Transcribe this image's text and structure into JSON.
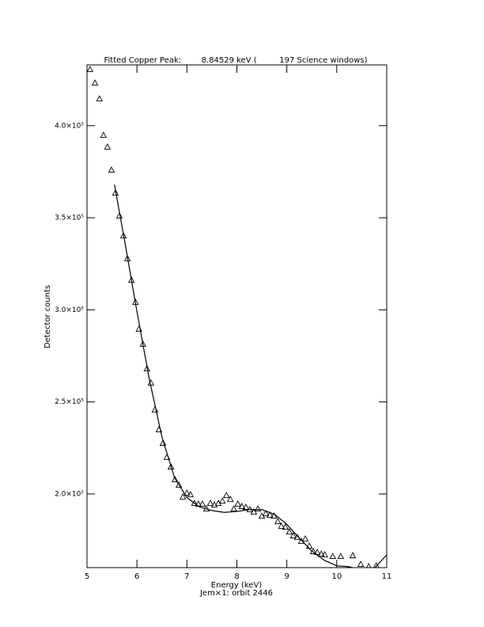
{
  "chart_data": {
    "type": "scatter",
    "title": "Fitted Copper Peak:        8.84529 keV (         197 Science windows)",
    "x_label": "Energy (keV)",
    "subtitle": "Jem×1: orbit 2446",
    "y_label": "Detector counts",
    "xlim": [
      5,
      11
    ],
    "xticks": [
      5,
      6,
      7,
      8,
      9,
      10,
      11
    ],
    "ylim": [
      160000,
      433000
    ],
    "yticks": [
      {
        "value": 200000,
        "label": "2.0×10⁵"
      },
      {
        "value": 250000,
        "label": "2.5×10⁵"
      },
      {
        "value": 300000,
        "label": "3.0×10⁵"
      },
      {
        "value": 350000,
        "label": "3.5×10⁵"
      },
      {
        "value": 400000,
        "label": "4.0×10⁵"
      }
    ],
    "series": [
      {
        "style": "triangles",
        "color": "#000000",
        "x": [
          5.06,
          5.16,
          5.25,
          5.33,
          5.41,
          5.49,
          5.57,
          5.65,
          5.73,
          5.81,
          5.89,
          5.97,
          6.04,
          6.12,
          6.2,
          6.28,
          6.36,
          6.44,
          6.52,
          6.6,
          6.68,
          6.76,
          6.84,
          6.92,
          7.0,
          7.07,
          7.15,
          7.23,
          7.31,
          7.39,
          7.47,
          7.55,
          7.63,
          7.71,
          7.79,
          7.87,
          7.94,
          8.02,
          8.1,
          8.18,
          8.26,
          8.34,
          8.42,
          8.5,
          8.58,
          8.66,
          8.74,
          8.82,
          8.89,
          8.97,
          9.05,
          9.13,
          9.21,
          9.29,
          9.37,
          9.45,
          9.53,
          9.61,
          9.69,
          9.76,
          9.92,
          10.08,
          10.32,
          10.48,
          10.64,
          10.79
        ],
        "values": [
          430400,
          423100,
          414500,
          394700,
          388300,
          375800,
          363400,
          350900,
          340100,
          327700,
          316000,
          304000,
          289400,
          281200,
          267900,
          260200,
          245600,
          234800,
          227500,
          219800,
          214600,
          207700,
          204700,
          198300,
          200400,
          199600,
          194800,
          194400,
          194400,
          191800,
          194800,
          194000,
          194800,
          196100,
          199100,
          197000,
          191800,
          194400,
          193100,
          192700,
          191400,
          190100,
          191800,
          187900,
          189200,
          188400,
          187900,
          184900,
          182400,
          181900,
          179300,
          177200,
          176300,
          174200,
          175500,
          171600,
          168600,
          168200,
          167300,
          166900,
          166000,
          166000,
          166400,
          161700,
          160400,
          160900
        ]
      },
      {
        "style": "line",
        "color": "#000000",
        "x": [
          5.55,
          5.75,
          6.0,
          6.25,
          6.5,
          6.75,
          7.0,
          7.25,
          7.5,
          7.75,
          8.0,
          8.25,
          8.5,
          8.75,
          9.0,
          9.25,
          9.5,
          9.75,
          10.0,
          10.25,
          10.5,
          10.75,
          11.0
        ],
        "values": [
          368000,
          338000,
          299000,
          262000,
          231000,
          209000,
          198000,
          193000,
          191000,
          190000,
          190500,
          191500,
          191500,
          189000,
          183500,
          176000,
          169000,
          164000,
          161000,
          160500,
          158500,
          159500,
          167000
        ]
      }
    ]
  }
}
